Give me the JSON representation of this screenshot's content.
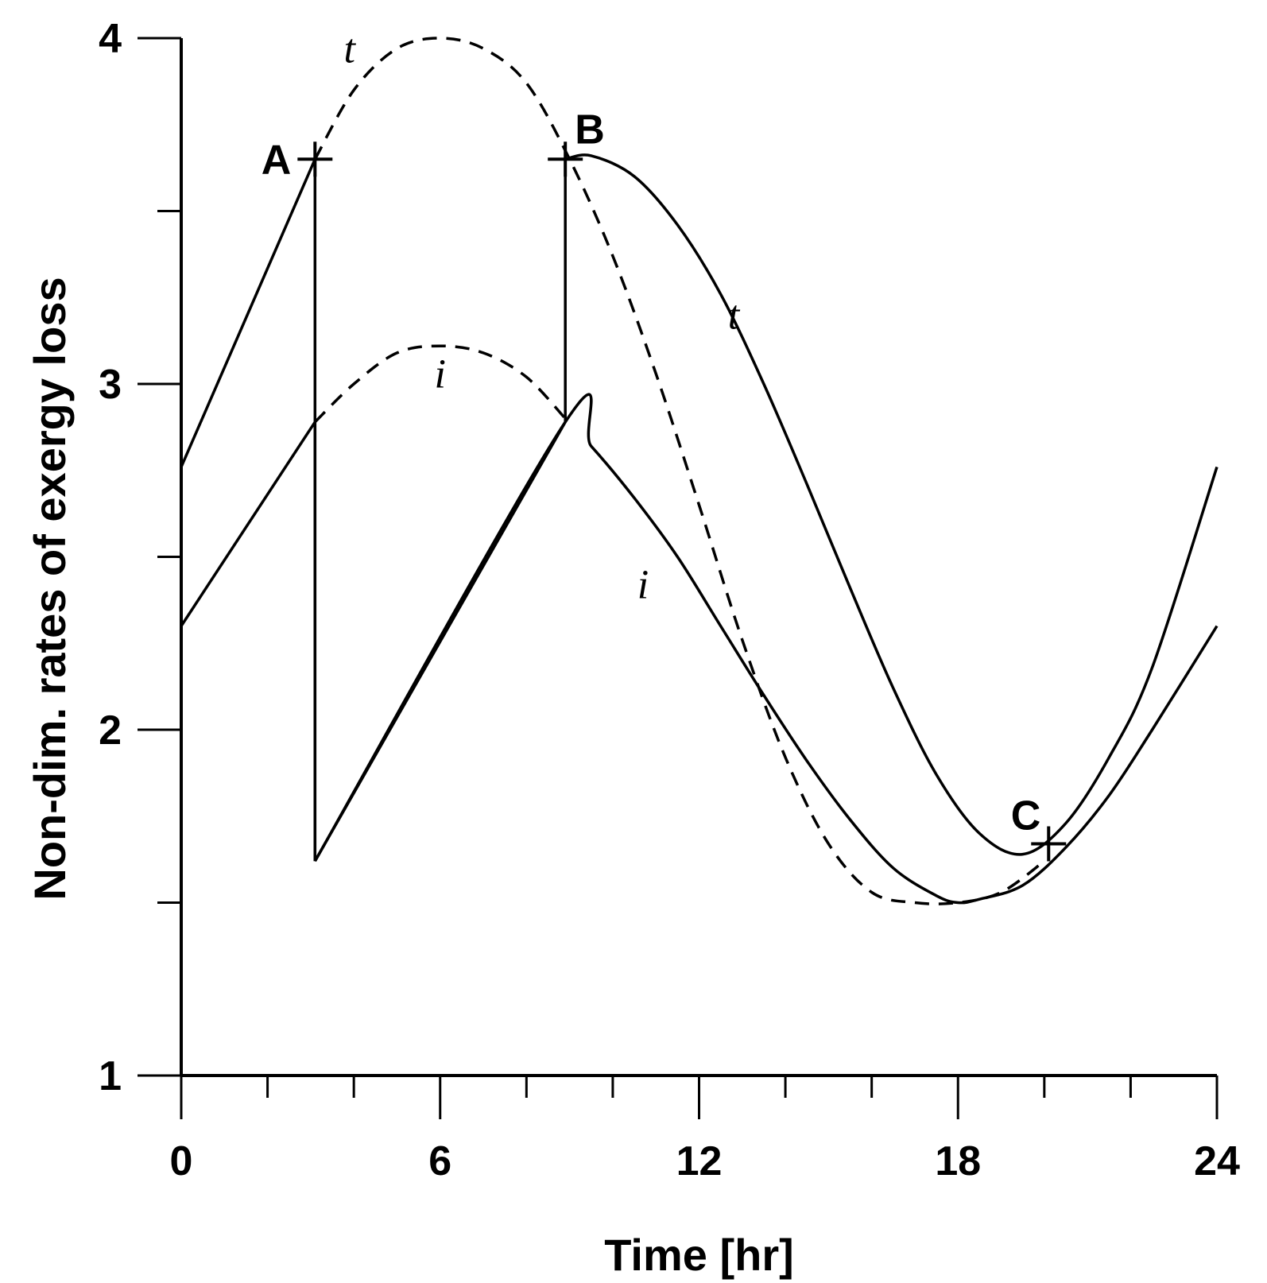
{
  "chart_data": {
    "type": "line",
    "title": "",
    "xlabel": "Time [hr]",
    "ylabel": "Non-dim. rates of exergy loss",
    "xlim": [
      0,
      24
    ],
    "ylim": [
      1,
      4
    ],
    "xticks_labeled": [
      0,
      6,
      12,
      18,
      24
    ],
    "xticks_minor": [
      2,
      4,
      8,
      10,
      14,
      16,
      20,
      22
    ],
    "yticks_labeled": [
      1,
      2,
      3,
      4
    ],
    "yticks_minor": [
      1.5,
      2.5,
      3.5
    ],
    "grid": false,
    "legend": "none",
    "series": [
      {
        "name": "t",
        "style": "solid",
        "points": [
          [
            0,
            2.76
          ],
          [
            3.1,
            3.65
          ],
          [
            3.1,
            1.62
          ],
          [
            8.9,
            2.89
          ],
          [
            8.9,
            3.65
          ],
          [
            9.5,
            3.66
          ],
          [
            10.5,
            3.6
          ],
          [
            11.5,
            3.46
          ],
          [
            12.5,
            3.26
          ],
          [
            13.5,
            3.0
          ],
          [
            14.5,
            2.71
          ],
          [
            15.5,
            2.41
          ],
          [
            16.5,
            2.12
          ],
          [
            17.5,
            1.87
          ],
          [
            18.5,
            1.7
          ],
          [
            19.5,
            1.64
          ],
          [
            20.5,
            1.73
          ],
          [
            21.5,
            1.92
          ],
          [
            22.5,
            2.18
          ],
          [
            24,
            2.76
          ]
        ]
      },
      {
        "name": "i",
        "style": "solid",
        "points": [
          [
            0,
            2.3
          ],
          [
            3.1,
            2.89
          ],
          [
            3.1,
            1.62
          ],
          [
            8.9,
            2.89
          ],
          [
            9.5,
            2.82
          ],
          [
            10.5,
            2.67
          ],
          [
            11.5,
            2.5
          ],
          [
            12.5,
            2.3
          ],
          [
            13.5,
            2.1
          ],
          [
            14.5,
            1.91
          ],
          [
            15.5,
            1.74
          ],
          [
            16.5,
            1.6
          ],
          [
            17.5,
            1.52
          ],
          [
            18,
            1.5
          ],
          [
            18.5,
            1.51
          ],
          [
            19.5,
            1.55
          ],
          [
            20.5,
            1.66
          ],
          [
            21.5,
            1.81
          ],
          [
            22.5,
            2.0
          ],
          [
            24,
            2.3
          ]
        ]
      },
      {
        "name": "t",
        "style": "dashed",
        "points": [
          [
            3.1,
            3.65
          ],
          [
            4,
            3.85
          ],
          [
            5,
            3.97
          ],
          [
            6,
            4.0
          ],
          [
            7,
            3.97
          ],
          [
            8,
            3.87
          ],
          [
            9,
            3.65
          ],
          [
            10,
            3.37
          ],
          [
            11,
            3.03
          ],
          [
            12,
            2.65
          ],
          [
            13,
            2.26
          ],
          [
            14,
            1.92
          ],
          [
            15,
            1.67
          ],
          [
            16,
            1.53
          ],
          [
            17,
            1.5
          ],
          [
            18,
            1.5
          ],
          [
            19,
            1.53
          ],
          [
            20,
            1.62
          ]
        ]
      },
      {
        "name": "i",
        "style": "dashed",
        "points": [
          [
            3.1,
            2.89
          ],
          [
            4,
            3.0
          ],
          [
            5,
            3.09
          ],
          [
            6,
            3.11
          ],
          [
            7,
            3.09
          ],
          [
            8,
            3.02
          ],
          [
            8.9,
            2.9
          ]
        ]
      }
    ],
    "annotations": [
      {
        "text": "A",
        "x": 3.1,
        "y": 3.65
      },
      {
        "text": "B",
        "x": 8.9,
        "y": 3.65
      },
      {
        "text": "C",
        "x": 20.1,
        "y": 1.67
      }
    ],
    "curve_labels": [
      {
        "text": "t",
        "x": 3.9,
        "y": 3.93
      },
      {
        "text": "i",
        "x": 6.0,
        "y": 2.99
      },
      {
        "text": "t",
        "x": 12.8,
        "y": 3.16
      },
      {
        "text": "i",
        "x": 10.7,
        "y": 2.38
      }
    ]
  }
}
